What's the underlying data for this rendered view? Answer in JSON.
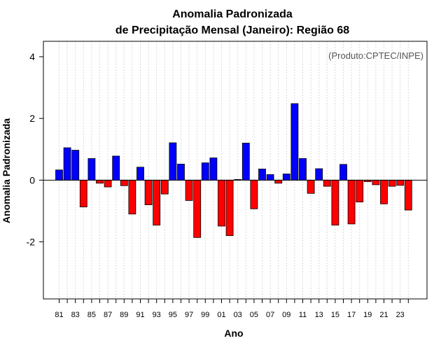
{
  "chart_data": {
    "type": "bar",
    "title": "Anomalia Padronizada",
    "subtitle": "de Precipitação Mensal (Janeiro): Região 68",
    "xlabel": "Ano",
    "ylabel": "Anomalia Padronizada",
    "credit": "(Produto:CPTEC/INPE)",
    "ylim": [
      -3.85,
      4.5
    ],
    "yticks": [
      -2,
      0,
      2,
      4
    ],
    "yticks_labels": [
      "-2",
      "0",
      "2",
      "4"
    ],
    "grid": "vertical dotted",
    "positive_color": "#0000ff",
    "negative_color": "#ff0000",
    "categories": [
      "81",
      "82",
      "83",
      "84",
      "85",
      "86",
      "87",
      "88",
      "89",
      "90",
      "91",
      "92",
      "93",
      "94",
      "95",
      "96",
      "97",
      "98",
      "99",
      "00",
      "01",
      "02",
      "03",
      "04",
      "05",
      "06",
      "07",
      "08",
      "09",
      "10",
      "11",
      "12",
      "13",
      "14",
      "15",
      "16",
      "17",
      "18",
      "19",
      "20",
      "21",
      "22",
      "23",
      "24"
    ],
    "xtick_labels": [
      "81",
      "83",
      "85",
      "87",
      "89",
      "91",
      "93",
      "95",
      "97",
      "99",
      "01",
      "03",
      "05",
      "07",
      "09",
      "11",
      "13",
      "15",
      "17",
      "19",
      "21",
      "23"
    ],
    "values": [
      0.33,
      1.05,
      0.97,
      -0.87,
      0.7,
      -0.1,
      -0.22,
      0.78,
      -0.18,
      -1.1,
      0.42,
      -0.8,
      -1.46,
      -0.45,
      1.21,
      0.52,
      -0.66,
      -1.86,
      0.56,
      0.72,
      -1.49,
      -1.8,
      0.02,
      1.2,
      -0.93,
      0.36,
      0.18,
      -0.1,
      0.2,
      2.48,
      0.7,
      -0.43,
      0.37,
      -0.2,
      -1.46,
      0.51,
      -1.42,
      -0.71,
      -0.05,
      -0.15,
      -0.77,
      -0.2,
      -0.17,
      -0.97
    ]
  }
}
